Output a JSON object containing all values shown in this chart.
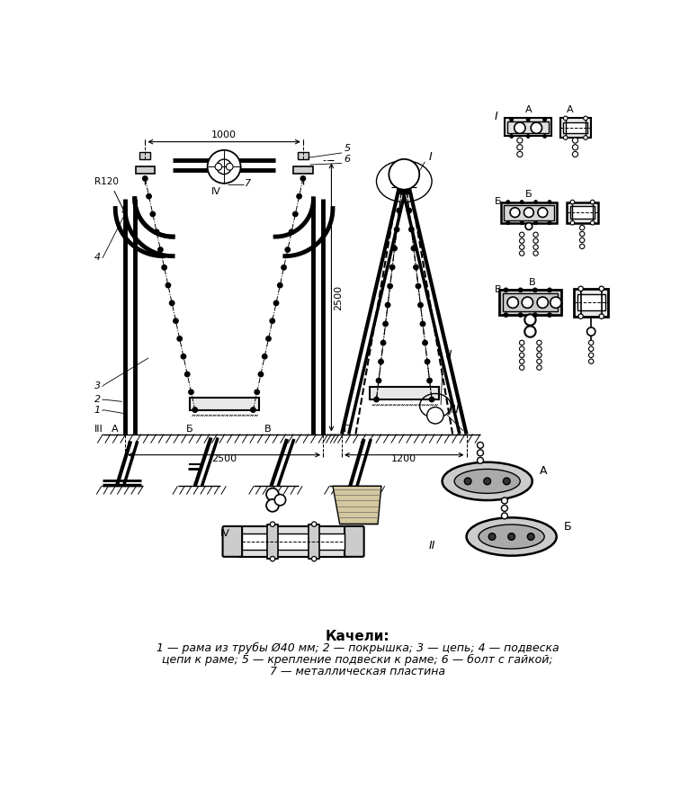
{
  "title": "Качели:",
  "caption_line1": "1 — рама из трубы Ø40 мм; 2 — покрышка; 3 — цепь; 4 — подвеска",
  "caption_line2": "цепи к раме; 5 — крепление подвески к раме; 6 — болт с гайкой;",
  "caption_line3": "7 — металлическая пластина",
  "bg_color": "#ffffff"
}
